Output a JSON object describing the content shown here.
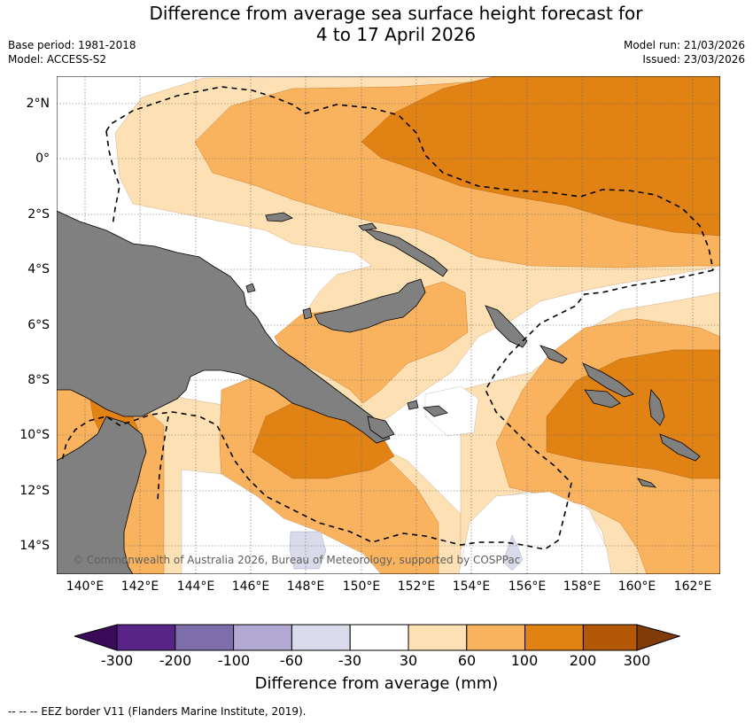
{
  "title_line1": "Difference from average sea surface height forecast for",
  "title_line2": "4 to 17 April 2026",
  "base_period": "Base period: 1981-2018",
  "model": "Model: ACCESS-S2",
  "model_run": "Model run: 21/03/2026",
  "issued": "Issued: 23/03/2026",
  "lat_labels": [
    "2°N",
    "0°",
    "2°S",
    "4°S",
    "6°S",
    "8°S",
    "10°S",
    "12°S",
    "14°S"
  ],
  "lon_labels": [
    "140°E",
    "142°E",
    "144°E",
    "146°E",
    "148°E",
    "150°E",
    "152°E",
    "154°E",
    "156°E",
    "158°E",
    "160°E",
    "162°E"
  ],
  "copyright": "© Commonwealth of Australia 2026, Bureau of Meteorology, supported by COSPPac",
  "colorbar": {
    "ticks": [
      "-300",
      "-200",
      "-100",
      "-60",
      "-30",
      "30",
      "60",
      "100",
      "200",
      "300"
    ],
    "colors": [
      "#3b0a5a",
      "#582488",
      "#7d6dab",
      "#b1a9d1",
      "#dadbea",
      "#ffffff",
      "#fde0b4",
      "#f9b35f",
      "#e08214",
      "#b35806",
      "#7f3b08"
    ],
    "label": "Difference from average (mm)"
  },
  "legend_note": "--  --  -- EEZ border V11 (Flanders Marine Institute, 2019).",
  "map_colors": {
    "land": "#808080",
    "band_30_60": "#fde0b4",
    "band_60_100": "#f9b35f",
    "band_100_200": "#e08214",
    "band_neg": "#dadbea"
  }
}
